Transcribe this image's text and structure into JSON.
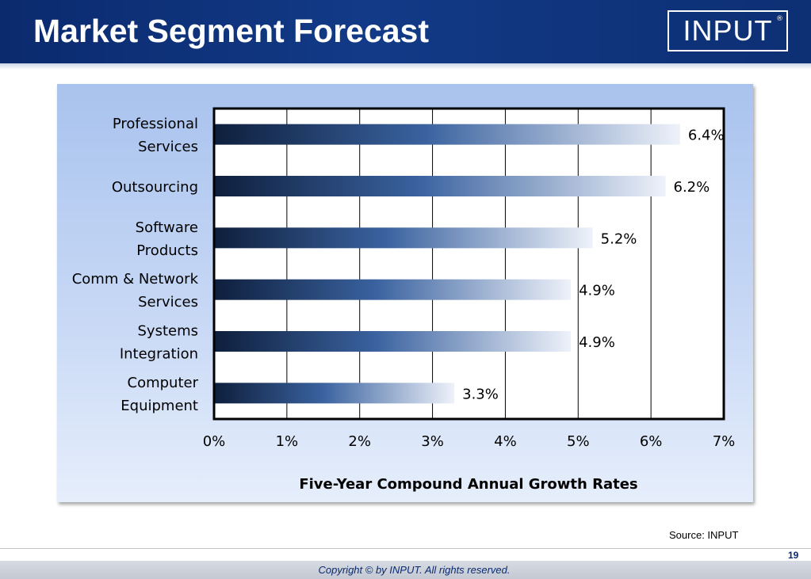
{
  "slide": {
    "title": "Market Segment Forecast",
    "logo_text": "INPUT",
    "logo_mark": "®",
    "source": "Source: INPUT",
    "copyright": "Copyright © by INPUT. All rights reserved.",
    "page_number": "19"
  },
  "colors": {
    "header_bg": "#0d2f74",
    "bar_dark": "#0e1f3d",
    "bar_mid": "#3a629f",
    "bar_light": "#eef2fa"
  },
  "chart_data": {
    "type": "bar",
    "orientation": "horizontal",
    "categories": [
      [
        "Professional",
        "Services"
      ],
      [
        "Outsourcing"
      ],
      [
        "Software",
        "Products"
      ],
      [
        "Comm & Network",
        "Services"
      ],
      [
        "Systems",
        "Integration"
      ],
      [
        "Computer",
        "Equipment"
      ]
    ],
    "values": [
      6.4,
      6.2,
      5.2,
      4.9,
      4.9,
      3.3
    ],
    "data_labels": [
      "6.4%",
      "6.2%",
      "5.2%",
      "4.9%",
      "4.9%",
      "3.3%"
    ],
    "xlim": [
      0,
      7
    ],
    "x_ticks": [
      "0%",
      "1%",
      "2%",
      "3%",
      "4%",
      "5%",
      "6%",
      "7%"
    ],
    "xlabel": "Five-Year Compound Annual Growth Rates",
    "grid": "vertical"
  }
}
